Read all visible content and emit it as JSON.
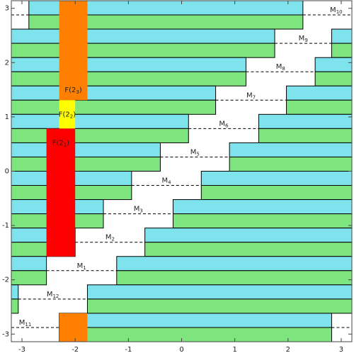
{
  "chart_data": {
    "type": "bands",
    "xlim": [
      -3.2,
      3.2
    ],
    "ylim": [
      -3.14,
      3.14
    ],
    "xticks": [
      -3,
      -2,
      -1,
      0,
      1,
      2,
      3
    ],
    "yticks": [
      -3,
      -2,
      -1,
      0,
      1,
      2,
      3
    ],
    "colors": {
      "upper": "#7fe3ee",
      "lower": "#7ee57e"
    },
    "bands": [
      {
        "label": {
          "base": "M",
          "sub": "10"
        },
        "y": [
          3.14,
          2.617
        ],
        "gap": [
          2.28,
          -2.87
        ]
      },
      {
        "label": {
          "base": "M",
          "sub": "9"
        },
        "y": [
          2.617,
          2.093
        ],
        "gap": [
          1.75,
          2.82
        ]
      },
      {
        "label": {
          "base": "M",
          "sub": "8"
        },
        "y": [
          2.093,
          1.57
        ],
        "gap": [
          1.21,
          2.51
        ]
      },
      {
        "label": {
          "base": "M",
          "sub": "7"
        },
        "y": [
          1.57,
          1.047
        ],
        "gap": [
          0.64,
          1.97
        ]
      },
      {
        "label": {
          "base": "M",
          "sub": "6"
        },
        "y": [
          1.047,
          0.523
        ],
        "gap": [
          0.13,
          1.45
        ]
      },
      {
        "label": {
          "base": "M",
          "sub": "5"
        },
        "y": [
          0.523,
          0
        ],
        "gap": [
          -0.4,
          0.9
        ]
      },
      {
        "label": {
          "base": "M",
          "sub": "4"
        },
        "y": [
          0,
          -0.523
        ],
        "gap": [
          -0.94,
          0.37
        ]
      },
      {
        "label": {
          "base": "M",
          "sub": "3"
        },
        "y": [
          -0.523,
          -1.047
        ],
        "gap": [
          -1.47,
          -0.16
        ]
      },
      {
        "label": {
          "base": "M",
          "sub": "2"
        },
        "y": [
          -1.047,
          -1.57
        ],
        "gap": [
          -2.0,
          -0.69
        ]
      },
      {
        "label": {
          "base": "M",
          "sub": "1"
        },
        "y": [
          -1.57,
          -2.093
        ],
        "gap": [
          -2.54,
          -1.22
        ]
      },
      {
        "label": {
          "base": "M",
          "sub": "12"
        },
        "y": [
          -2.093,
          -2.617
        ],
        "gap": [
          -3.07,
          -1.77
        ]
      },
      {
        "label": {
          "base": "M",
          "sub": "11"
        },
        "y": [
          -2.617,
          -3.14
        ],
        "gap": [
          2.82,
          -2.3
        ]
      }
    ],
    "blocks": [
      {
        "color": "#ff8000",
        "x": [
          -2.3,
          -1.77
        ],
        "y": [
          3.14,
          1.309
        ],
        "label": {
          "base": "F(2",
          "sub": "3",
          "end": ")"
        },
        "label_pos": "bottom"
      },
      {
        "color": "#ffff00",
        "x": [
          -2.3,
          -2.0
        ],
        "y": [
          1.309,
          0.785
        ],
        "label": {
          "base": "F(2",
          "sub": "2",
          "end": ")"
        },
        "label_pos": "center"
      },
      {
        "color": "#ff0000",
        "x": [
          -2.54,
          -2.0
        ],
        "y": [
          0.785,
          -1.57
        ],
        "label": {
          "base": "F(2",
          "sub": "1",
          "end": ")"
        },
        "label_pos": "top"
      },
      {
        "color": "#ff8000",
        "x": [
          -2.3,
          -1.77
        ],
        "y": [
          -2.617,
          -3.14
        ]
      }
    ]
  }
}
